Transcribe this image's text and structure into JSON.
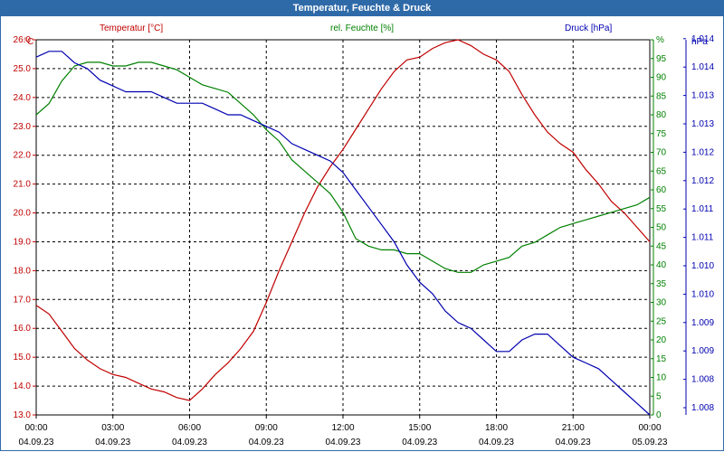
{
  "window_title": "Temperatur, Feuchte & Druck",
  "colors": {
    "temperature": "#c00000",
    "humidity": "#008000",
    "pressure": "#0000b0",
    "title_bar": "#2f6aa8"
  },
  "chart_data": {
    "type": "line",
    "title": "Temperatur, Feuchte & Druck",
    "grid": true,
    "axes": {
      "left": {
        "label": "Temperatur [°C]",
        "unit": "°C",
        "ylim": [
          13.0,
          26.0
        ],
        "ticks": [
          "13.0",
          "14.0",
          "15.0",
          "16.0",
          "17.0",
          "18.0",
          "19.0",
          "20.0",
          "21.0",
          "22.0",
          "23.0",
          "24.0",
          "25.0",
          "26.0"
        ]
      },
      "right1": {
        "label": "rel. Feuchte [%]",
        "unit": "%",
        "ylim": [
          0,
          100
        ],
        "ticks": [
          "0",
          "5",
          "10",
          "15",
          "20",
          "25",
          "30",
          "35",
          "40",
          "45",
          "50",
          "55",
          "60",
          "65",
          "70",
          "75",
          "80",
          "85",
          "90",
          "95",
          "%"
        ]
      },
      "right2": {
        "label": "Druck [hPa]",
        "unit": "hPa",
        "ylim": [
          1007.8,
          1014.3
        ],
        "ticks": [
          "1.008",
          "1.008",
          "1.009",
          "1.009",
          "1.010",
          "1.010",
          "1.011",
          "1.011",
          "1.012",
          "1.012",
          "1.013",
          "1.013",
          "1.014",
          "1.014"
        ]
      }
    },
    "x_ticks": [
      {
        "time": "00:00",
        "date": "04.09.23"
      },
      {
        "time": "03:00",
        "date": "04.09.23"
      },
      {
        "time": "06:00",
        "date": "04.09.23"
      },
      {
        "time": "09:00",
        "date": "04.09.23"
      },
      {
        "time": "12:00",
        "date": "04.09.23"
      },
      {
        "time": "15:00",
        "date": "04.09.23"
      },
      {
        "time": "18:00",
        "date": "04.09.23"
      },
      {
        "time": "21:00",
        "date": "04.09.23"
      },
      {
        "time": "00:00",
        "date": "05.09.23"
      }
    ],
    "x_hours": [
      0,
      0.5,
      1,
      1.5,
      2,
      2.5,
      3,
      3.5,
      4,
      4.5,
      5,
      5.5,
      6,
      6.5,
      7,
      7.5,
      8,
      8.5,
      9,
      9.5,
      10,
      10.5,
      11,
      11.5,
      12,
      12.5,
      13,
      13.5,
      14,
      14.5,
      15,
      15.5,
      16,
      16.5,
      17,
      17.5,
      18,
      18.5,
      19,
      19.5,
      20,
      20.5,
      21,
      21.5,
      22,
      22.5,
      23,
      23.5,
      24
    ],
    "series": [
      {
        "name": "Temperatur [°C]",
        "axis": "left",
        "values": [
          16.8,
          16.5,
          15.9,
          15.3,
          14.9,
          14.6,
          14.4,
          14.3,
          14.1,
          13.9,
          13.8,
          13.6,
          13.5,
          13.9,
          14.4,
          14.8,
          15.3,
          15.9,
          16.9,
          18.0,
          19.0,
          20.0,
          20.9,
          21.6,
          22.2,
          22.9,
          23.6,
          24.3,
          24.9,
          25.3,
          25.4,
          25.7,
          25.9,
          26.0,
          25.8,
          25.5,
          25.3,
          24.9,
          24.1,
          23.4,
          22.8,
          22.4,
          22.1,
          21.5,
          21.0,
          20.4,
          20.0,
          19.5,
          19.0
        ]
      },
      {
        "name": "rel. Feuchte [%]",
        "axis": "right1",
        "values": [
          80,
          83,
          89,
          93,
          94,
          94,
          93,
          93,
          94,
          94,
          93,
          92,
          90,
          88,
          87,
          86,
          83,
          80,
          76,
          73,
          68,
          65,
          62,
          59,
          54,
          47,
          45,
          44,
          44,
          43,
          43,
          41,
          39,
          38,
          38,
          40,
          41,
          42,
          45,
          46,
          48,
          50,
          51,
          52,
          53,
          54,
          55,
          56,
          58
        ]
      },
      {
        "name": "Druck [hPa]",
        "axis": "right2",
        "values": [
          1014.0,
          1014.1,
          1014.1,
          1013.9,
          1013.8,
          1013.6,
          1013.5,
          1013.4,
          1013.4,
          1013.4,
          1013.3,
          1013.2,
          1013.2,
          1013.2,
          1013.1,
          1013.0,
          1013.0,
          1012.9,
          1012.8,
          1012.7,
          1012.5,
          1012.4,
          1012.3,
          1012.2,
          1012.0,
          1011.7,
          1011.4,
          1011.1,
          1010.8,
          1010.4,
          1010.1,
          1009.9,
          1009.6,
          1009.4,
          1009.3,
          1009.1,
          1008.9,
          1008.9,
          1009.1,
          1009.2,
          1009.2,
          1009.0,
          1008.8,
          1008.7,
          1008.6,
          1008.4,
          1008.2,
          1008.0,
          1007.8
        ]
      }
    ]
  }
}
